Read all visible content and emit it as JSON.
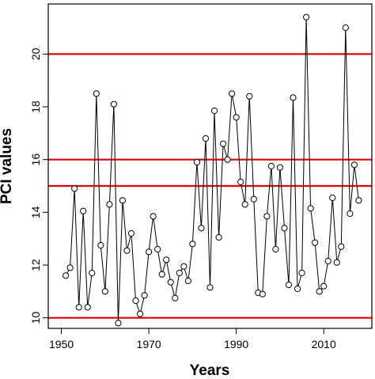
{
  "chart_data": {
    "type": "line",
    "title": "",
    "xlabel": "Years",
    "ylabel": "PCI values",
    "xlim": [
      1947,
      2021
    ],
    "ylim": [
      9.6,
      21.9
    ],
    "x_ticks": [
      1950,
      1970,
      1990,
      2010
    ],
    "y_ticks": [
      10,
      12,
      14,
      16,
      18,
      20
    ],
    "grid": false,
    "legend": "none",
    "reference_lines": [
      {
        "y": 10,
        "color": "#e00000"
      },
      {
        "y": 15,
        "color": "#e00000"
      },
      {
        "y": 16,
        "color": "#e00000"
      },
      {
        "y": 20,
        "color": "#e00000"
      }
    ],
    "series": [
      {
        "color": "#000000",
        "marker": "open-circle",
        "x": [
          1951,
          1952,
          1953,
          1954,
          1955,
          1956,
          1957,
          1958,
          1959,
          1960,
          1961,
          1962,
          1963,
          1964,
          1965,
          1966,
          1967,
          1968,
          1969,
          1970,
          1971,
          1972,
          1973,
          1974,
          1975,
          1976,
          1977,
          1978,
          1979,
          1980,
          1981,
          1982,
          1983,
          1984,
          1985,
          1986,
          1987,
          1988,
          1989,
          1990,
          1991,
          1992,
          1993,
          1994,
          1995,
          1996,
          1997,
          1998,
          1999,
          2000,
          2001,
          2002,
          2003,
          2004,
          2005,
          2006,
          2007,
          2008,
          2009,
          2010,
          2011,
          2012,
          2013,
          2014,
          2015,
          2016,
          2017,
          2018
        ],
        "values": [
          11.6,
          11.9,
          14.9,
          10.4,
          14.05,
          10.4,
          11.7,
          18.5,
          12.75,
          11.0,
          14.3,
          18.1,
          9.8,
          14.45,
          12.55,
          13.2,
          10.65,
          10.15,
          10.85,
          12.5,
          13.85,
          12.6,
          11.65,
          12.2,
          11.35,
          10.75,
          11.7,
          11.95,
          11.4,
          12.8,
          15.9,
          13.4,
          16.8,
          11.15,
          17.85,
          13.05,
          16.6,
          16.0,
          18.5,
          17.6,
          15.15,
          14.3,
          18.4,
          14.5,
          10.95,
          10.9,
          13.85,
          15.75,
          12.6,
          15.7,
          13.4,
          11.25,
          18.35,
          11.1,
          11.7,
          21.4,
          14.15,
          12.85,
          11.0,
          11.2,
          12.15,
          14.55,
          12.1,
          12.7,
          21.0,
          13.95,
          15.8,
          14.45
        ]
      }
    ]
  }
}
